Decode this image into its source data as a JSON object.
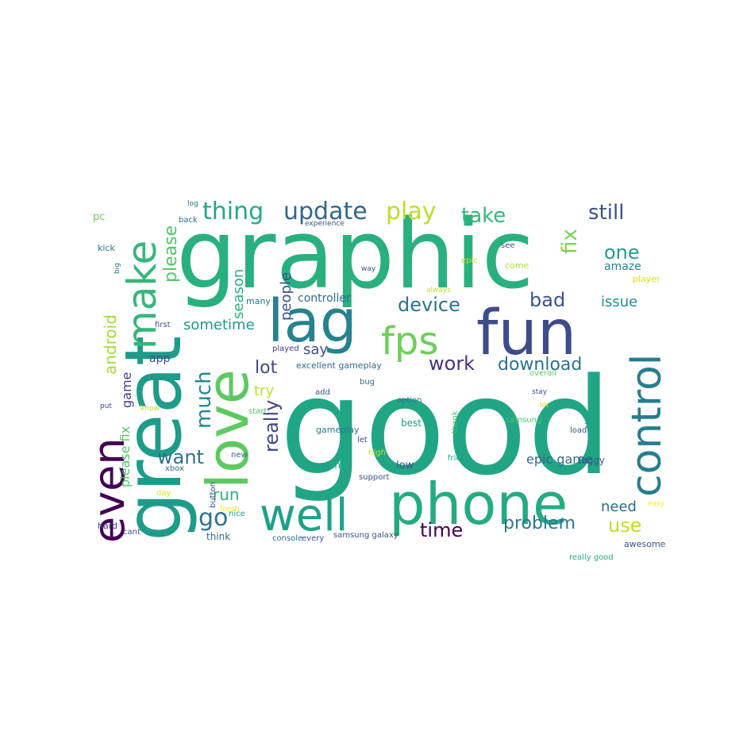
{
  "words": [
    {
      "text": "good",
      "color": "#21a685"
    },
    {
      "text": "graphic",
      "color": "#2ab07f"
    },
    {
      "text": "great",
      "color": "#1e9c89"
    },
    {
      "text": "fun",
      "color": "#3e4c8a"
    },
    {
      "text": "phone",
      "color": "#25ab82"
    },
    {
      "text": "love",
      "color": "#5ec962"
    },
    {
      "text": "lag",
      "color": "#26828e"
    },
    {
      "text": "well",
      "color": "#1fa188"
    },
    {
      "text": "control",
      "color": "#287d8e"
    },
    {
      "text": "make",
      "color": "#35b779"
    },
    {
      "text": "even",
      "color": "#440154"
    },
    {
      "text": "go",
      "color": "#2c728e"
    },
    {
      "text": "fps",
      "color": "#6ece58"
    },
    {
      "text": "update",
      "color": "#31688e"
    },
    {
      "text": "thing",
      "color": "#22a884"
    },
    {
      "text": "play",
      "color": "#bddf26"
    },
    {
      "text": "take",
      "color": "#35b779"
    },
    {
      "text": "still",
      "color": "#3b528b"
    },
    {
      "text": "fix",
      "color": "#7ad151"
    },
    {
      "text": "one",
      "color": "#1f9e89"
    },
    {
      "text": "amaze",
      "color": "#26828e"
    },
    {
      "text": "bad",
      "color": "#39568c"
    },
    {
      "text": "issue",
      "color": "#21918c"
    },
    {
      "text": "device",
      "color": "#2c728e"
    },
    {
      "text": "sometime",
      "color": "#1e9b8a"
    },
    {
      "text": "say",
      "color": "#3b528b"
    },
    {
      "text": "lot",
      "color": "#3e4989"
    },
    {
      "text": "work",
      "color": "#46327e"
    },
    {
      "text": "download",
      "color": "#2d708e"
    },
    {
      "text": "much",
      "color": "#25858e"
    },
    {
      "text": "really",
      "color": "#3f4788"
    },
    {
      "text": "try",
      "color": "#c2df23"
    },
    {
      "text": "want",
      "color": "#2d708e"
    },
    {
      "text": "people",
      "color": "#3b528b"
    },
    {
      "text": "season",
      "color": "#29af7f"
    },
    {
      "text": "please",
      "color": "#52c569"
    },
    {
      "text": "android",
      "color": "#a5db36"
    },
    {
      "text": "game",
      "color": "#433e85"
    },
    {
      "text": "please fix",
      "color": "#52c569"
    },
    {
      "text": "run",
      "color": "#2eb37c"
    },
    {
      "text": "time",
      "color": "#440154"
    },
    {
      "text": "problem",
      "color": "#2a788e"
    },
    {
      "text": "need",
      "color": "#31688e"
    },
    {
      "text": "use",
      "color": "#bddf26"
    },
    {
      "text": "epic game",
      "color": "#31688e"
    },
    {
      "text": "laggy",
      "color": "#39568c"
    },
    {
      "text": "controller",
      "color": "#2f6c8e"
    },
    {
      "text": "excellent gameplay",
      "color": "#31688e"
    },
    {
      "text": "app",
      "color": "#3e4989"
    },
    {
      "text": "many",
      "color": "#2d708e"
    },
    {
      "text": "first",
      "color": "#3b528b"
    },
    {
      "text": "played",
      "color": "#433e85"
    },
    {
      "text": "gameplay",
      "color": "#2a788e"
    },
    {
      "text": "best",
      "color": "#1f9e89"
    },
    {
      "text": "low",
      "color": "#3b528b"
    },
    {
      "text": "match",
      "color": "#1f9e89"
    },
    {
      "text": "support",
      "color": "#3b528b"
    },
    {
      "text": "friend",
      "color": "#22a884"
    },
    {
      "text": "thank",
      "color": "#4ac16d"
    },
    {
      "text": "load",
      "color": "#3b528b"
    },
    {
      "text": "skin",
      "color": "#1f9e89"
    },
    {
      "text": "samsung",
      "color": "#4ac16d"
    },
    {
      "text": "option",
      "color": "#2a788e"
    },
    {
      "text": "add",
      "color": "#39568c"
    },
    {
      "text": "let",
      "color": "#3b528b"
    },
    {
      "text": "high",
      "color": "#c2df23"
    },
    {
      "text": "start",
      "color": "#52c569"
    },
    {
      "text": "bug",
      "color": "#2d708e"
    },
    {
      "text": "overall",
      "color": "#5ec962"
    },
    {
      "text": "awesome",
      "color": "#3b528b"
    },
    {
      "text": "really good",
      "color": "#29af7f"
    },
    {
      "text": "samsung galaxy",
      "color": "#3b528b"
    },
    {
      "text": "console",
      "color": "#2c728e"
    },
    {
      "text": "every",
      "color": "#3b528b"
    },
    {
      "text": "think",
      "color": "#31688e"
    },
    {
      "text": "nice",
      "color": "#1fa188"
    },
    {
      "text": "new",
      "color": "#31688e"
    },
    {
      "text": "xbox",
      "color": "#2c728e"
    },
    {
      "text": "button",
      "color": "#3b528b"
    },
    {
      "text": "fresh",
      "color": "#fde725"
    },
    {
      "text": "day",
      "color": "#d2e21b"
    },
    {
      "text": "hard",
      "color": "#3e4989"
    },
    {
      "text": "cant",
      "color": "#3b528b"
    },
    {
      "text": "put",
      "color": "#3b528b"
    },
    {
      "text": "know",
      "color": "#c2df23"
    },
    {
      "text": "kick",
      "color": "#2d708e"
    },
    {
      "text": "big",
      "color": "#2c728e"
    },
    {
      "text": "pc",
      "color": "#6ece58"
    },
    {
      "text": "back",
      "color": "#31688e"
    },
    {
      "text": "log",
      "color": "#2c728e"
    },
    {
      "text": "experience",
      "color": "#3b528b"
    },
    {
      "text": "see",
      "color": "#3b528b"
    },
    {
      "text": "epic",
      "color": "#c2df23"
    },
    {
      "text": "come",
      "color": "#b5de2b"
    },
    {
      "text": "way",
      "color": "#3b528b"
    },
    {
      "text": "player",
      "color": "#d8e219"
    },
    {
      "text": "always",
      "color": "#c2df23"
    },
    {
      "text": "easy",
      "color": "#fde725"
    },
    {
      "text": "stay",
      "color": "#3b528b"
    },
    {
      "text": "lot",
      "color": "#c2df23"
    }
  ]
}
